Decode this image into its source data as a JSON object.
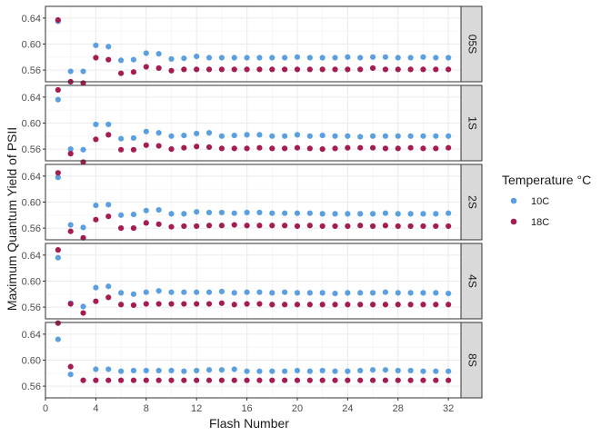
{
  "chart_data": {
    "type": "scatter",
    "xlabel": "Flash Number",
    "ylabel": "Maximum Quantum Yield of PSII",
    "xlim": [
      0,
      33
    ],
    "ylim": [
      0.542,
      0.658
    ],
    "x_ticks": [
      0,
      4,
      8,
      12,
      16,
      20,
      24,
      28,
      32
    ],
    "y_ticks": [
      0.56,
      0.6,
      0.64
    ],
    "y_tick_labels": [
      "0.56",
      "0.60",
      "0.64"
    ],
    "grid": true,
    "legend": {
      "title": "Temperature °C",
      "placement": "right",
      "entries": [
        {
          "name": "10C",
          "color": "#5aa0e0"
        },
        {
          "name": "18C",
          "color": "#a51c52"
        }
      ]
    },
    "x": [
      1,
      2,
      3,
      4,
      5,
      6,
      7,
      8,
      9,
      10,
      11,
      12,
      13,
      14,
      15,
      16,
      17,
      18,
      19,
      20,
      21,
      22,
      23,
      24,
      25,
      26,
      27,
      28,
      29,
      30,
      31,
      32
    ],
    "panels": [
      {
        "label": "05S",
        "series": [
          {
            "name": "10C",
            "values": [
              0.635,
              0.558,
              0.558,
              0.598,
              0.596,
              0.575,
              0.576,
              0.586,
              0.585,
              0.577,
              0.578,
              0.581,
              0.579,
              0.579,
              0.579,
              0.579,
              0.579,
              0.579,
              0.579,
              0.58,
              0.579,
              0.579,
              0.579,
              0.58,
              0.579,
              0.58,
              0.58,
              0.579,
              0.579,
              0.58,
              0.579,
              0.579
            ]
          },
          {
            "name": "18C",
            "values": [
              0.637,
              0.542,
              0.54,
              0.579,
              0.576,
              0.555,
              0.557,
              0.565,
              0.563,
              0.559,
              0.561,
              0.561,
              0.561,
              0.561,
              0.561,
              0.561,
              0.561,
              0.561,
              0.561,
              0.561,
              0.561,
              0.561,
              0.561,
              0.561,
              0.561,
              0.563,
              0.561,
              0.561,
              0.561,
              0.561,
              0.561,
              0.561
            ]
          }
        ]
      },
      {
        "label": "1S",
        "series": [
          {
            "name": "10C",
            "values": [
              0.636,
              0.56,
              0.559,
              0.598,
              0.598,
              0.576,
              0.577,
              0.587,
              0.585,
              0.58,
              0.581,
              0.584,
              0.585,
              0.58,
              0.581,
              0.582,
              0.582,
              0.58,
              0.58,
              0.582,
              0.58,
              0.581,
              0.58,
              0.58,
              0.579,
              0.58,
              0.58,
              0.58,
              0.58,
              0.58,
              0.58,
              0.58
            ]
          },
          {
            "name": "18C",
            "values": [
              0.651,
              0.553,
              0.54,
              0.575,
              0.582,
              0.559,
              0.559,
              0.566,
              0.565,
              0.56,
              0.562,
              0.564,
              0.563,
              0.561,
              0.561,
              0.561,
              0.562,
              0.561,
              0.561,
              0.562,
              0.561,
              0.56,
              0.561,
              0.562,
              0.562,
              0.562,
              0.561,
              0.561,
              0.562,
              0.561,
              0.561,
              0.562
            ]
          }
        ]
      },
      {
        "label": "2S",
        "series": [
          {
            "name": "10C",
            "values": [
              0.638,
              0.565,
              0.561,
              0.595,
              0.596,
              0.58,
              0.581,
              0.587,
              0.588,
              0.582,
              0.582,
              0.585,
              0.584,
              0.584,
              0.583,
              0.584,
              0.584,
              0.583,
              0.583,
              0.583,
              0.583,
              0.582,
              0.582,
              0.582,
              0.582,
              0.582,
              0.583,
              0.582,
              0.582,
              0.582,
              0.582,
              0.583
            ]
          },
          {
            "name": "18C",
            "values": [
              0.645,
              0.555,
              0.545,
              0.573,
              0.578,
              0.56,
              0.56,
              0.568,
              0.566,
              0.562,
              0.563,
              0.563,
              0.564,
              0.564,
              0.565,
              0.564,
              0.564,
              0.564,
              0.564,
              0.563,
              0.564,
              0.563,
              0.563,
              0.563,
              0.564,
              0.563,
              0.564,
              0.563,
              0.563,
              0.563,
              0.563,
              0.563
            ]
          }
        ]
      },
      {
        "label": "4S",
        "series": [
          {
            "name": "10C",
            "values": [
              0.636,
              0.566,
              0.561,
              0.59,
              0.592,
              0.582,
              0.58,
              0.583,
              0.585,
              0.583,
              0.583,
              0.583,
              0.583,
              0.584,
              0.582,
              0.583,
              0.583,
              0.582,
              0.583,
              0.582,
              0.582,
              0.582,
              0.581,
              0.582,
              0.582,
              0.582,
              0.583,
              0.582,
              0.582,
              0.582,
              0.582,
              0.581
            ]
          },
          {
            "name": "18C",
            "values": [
              0.648,
              0.565,
              0.551,
              0.569,
              0.575,
              0.564,
              0.563,
              0.565,
              0.565,
              0.565,
              0.565,
              0.565,
              0.565,
              0.566,
              0.564,
              0.565,
              0.565,
              0.564,
              0.564,
              0.564,
              0.564,
              0.564,
              0.564,
              0.564,
              0.564,
              0.564,
              0.564,
              0.564,
              0.564,
              0.564,
              0.564,
              0.564
            ]
          }
        ]
      },
      {
        "label": "8S",
        "series": [
          {
            "name": "10C",
            "values": [
              0.632,
              0.578,
              0.569,
              0.586,
              0.586,
              0.583,
              0.584,
              0.584,
              0.584,
              0.584,
              0.583,
              0.584,
              0.585,
              0.585,
              0.586,
              0.583,
              0.583,
              0.583,
              0.583,
              0.584,
              0.583,
              0.584,
              0.583,
              0.583,
              0.584,
              0.585,
              0.585,
              0.584,
              0.584,
              0.583,
              0.583,
              0.583
            ]
          },
          {
            "name": "18C",
            "values": [
              0.657,
              0.59,
              0.569,
              0.569,
              0.569,
              0.569,
              0.569,
              0.569,
              0.569,
              0.569,
              0.569,
              0.569,
              0.569,
              0.569,
              0.569,
              0.569,
              0.569,
              0.569,
              0.569,
              0.569,
              0.569,
              0.569,
              0.569,
              0.569,
              0.569,
              0.569,
              0.569,
              0.569,
              0.569,
              0.569,
              0.569,
              0.569
            ]
          }
        ]
      }
    ]
  }
}
